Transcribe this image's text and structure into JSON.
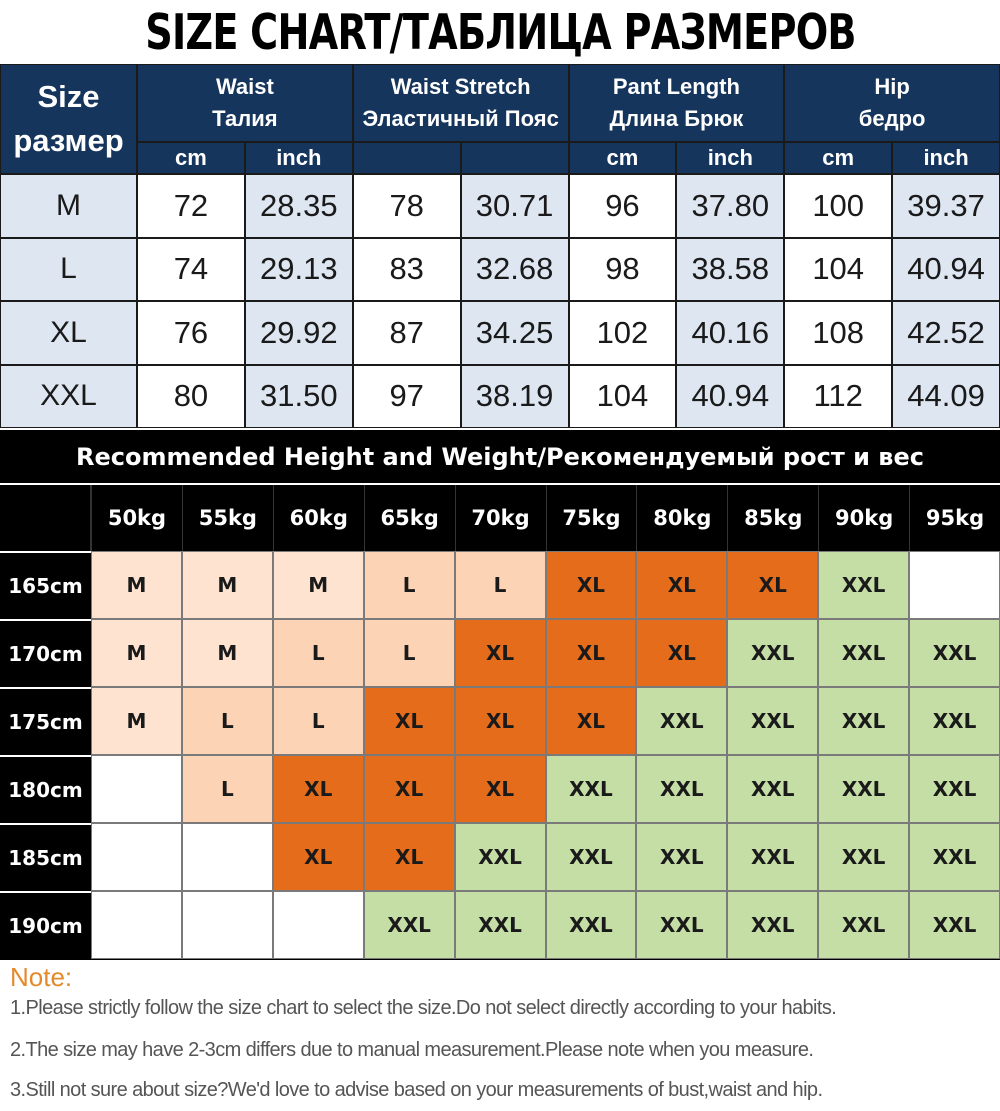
{
  "title": "SIZE CHART/ТАБЛИЦА РАЗМЕРОВ",
  "size_table": {
    "size_header": [
      "Size",
      "размер"
    ],
    "groups": [
      {
        "en": "Waist",
        "ru": "Талия"
      },
      {
        "en": "Waist Stretch",
        "ru": "Эластичный Пояс"
      },
      {
        "en": "Pant Length",
        "ru": "Длина Брюк"
      },
      {
        "en": "Hip",
        "ru": "бедро"
      }
    ],
    "units": [
      "cm",
      "inch",
      "",
      "",
      "cm",
      "inch",
      "cm",
      "inch"
    ],
    "rows": [
      {
        "size": "M",
        "values": [
          "72",
          "28.35",
          "78",
          "30.71",
          "96",
          "37.80",
          "100",
          "39.37"
        ]
      },
      {
        "size": "L",
        "values": [
          "74",
          "29.13",
          "83",
          "32.68",
          "98",
          "38.58",
          "104",
          "40.94"
        ]
      },
      {
        "size": "XL",
        "values": [
          "76",
          "29.92",
          "87",
          "34.25",
          "102",
          "40.16",
          "108",
          "42.52"
        ]
      },
      {
        "size": "XXL",
        "values": [
          "80",
          "31.50",
          "97",
          "38.19",
          "104",
          "40.94",
          "112",
          "44.09"
        ]
      }
    ]
  },
  "recommend": {
    "title": "Recommended Height and Weight/Рекомендуемый рост и вес",
    "weights": [
      "50kg",
      "55kg",
      "60kg",
      "65kg",
      "70kg",
      "75kg",
      "80kg",
      "85kg",
      "90kg",
      "95kg"
    ],
    "rows": [
      {
        "height": "165cm",
        "sizes": [
          "M",
          "M",
          "M",
          "L",
          "L",
          "XL",
          "XL",
          "XL",
          "XXL",
          ""
        ]
      },
      {
        "height": "170cm",
        "sizes": [
          "M",
          "M",
          "L",
          "L",
          "XL",
          "XL",
          "XL",
          "XXL",
          "XXL",
          "XXL"
        ]
      },
      {
        "height": "175cm",
        "sizes": [
          "M",
          "L",
          "L",
          "XL",
          "XL",
          "XL",
          "XXL",
          "XXL",
          "XXL",
          "XXL"
        ]
      },
      {
        "height": "180cm",
        "sizes": [
          "",
          "L",
          "XL",
          "XL",
          "XL",
          "XXL",
          "XXL",
          "XXL",
          "XXL",
          "XXL"
        ]
      },
      {
        "height": "185cm",
        "sizes": [
          "",
          "",
          "XL",
          "XL",
          "XXL",
          "XXL",
          "XXL",
          "XXL",
          "XXL",
          "XXL"
        ]
      },
      {
        "height": "190cm",
        "sizes": [
          "",
          "",
          "",
          "XXL",
          "XXL",
          "XXL",
          "XXL",
          "XXL",
          "XXL",
          "XXL"
        ]
      }
    ]
  },
  "notes": {
    "title": "Note:",
    "lines": [
      "1.Please strictly follow the size chart to select the size.Do not select directly according to your habits.",
      "2.The size may have 2-3cm differs due to manual measurement.Please note when you measure.",
      "3.Still not sure about size?We'd love to advise based on your measurements of bust,waist and hip."
    ]
  },
  "colors": {
    "header_navy": "#15355c",
    "size_blue": "#dde6f1",
    "m_cell": "#fde3d0",
    "l_cell": "#fcd3b4",
    "xl_cell": "#e56c1a",
    "xxl_cell": "#c5dea6",
    "note_orange": "#e58a2c"
  }
}
